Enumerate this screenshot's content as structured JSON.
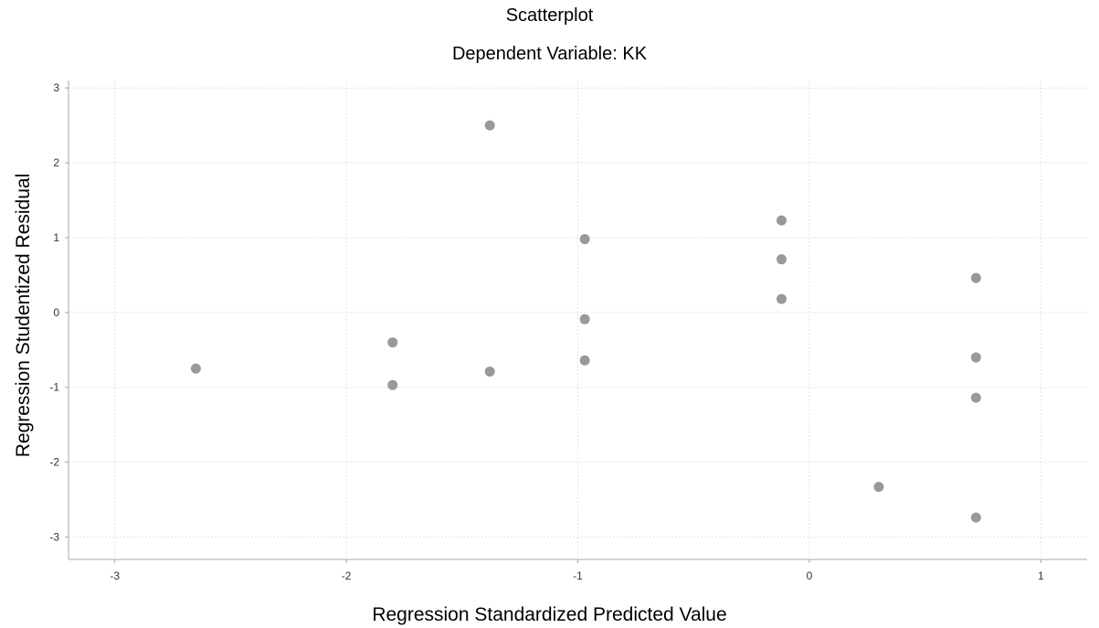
{
  "chart_data": {
    "type": "scatter",
    "title": "Scatterplot",
    "subtitle": "Dependent Variable: KK",
    "xlabel": "Regression Standardized Predicted Value",
    "ylabel": "Regression Studentized Residual",
    "xlim": [
      -3.2,
      1.2
    ],
    "ylim": [
      -3.3,
      3.1
    ],
    "xticks": [
      -3,
      -2,
      -1,
      0,
      1
    ],
    "yticks": [
      -3,
      -2,
      -1,
      0,
      1,
      2,
      3
    ],
    "grid": true,
    "point_color": "#999999",
    "points": [
      {
        "x": -2.65,
        "y": -0.75
      },
      {
        "x": -1.8,
        "y": -0.4
      },
      {
        "x": -1.8,
        "y": -0.97
      },
      {
        "x": -1.38,
        "y": 2.5
      },
      {
        "x": -1.38,
        "y": -0.79
      },
      {
        "x": -0.97,
        "y": 0.98
      },
      {
        "x": -0.97,
        "y": -0.09
      },
      {
        "x": -0.97,
        "y": -0.64
      },
      {
        "x": -0.12,
        "y": 1.23
      },
      {
        "x": -0.12,
        "y": 0.71
      },
      {
        "x": -0.12,
        "y": 0.18
      },
      {
        "x": 0.3,
        "y": -2.33
      },
      {
        "x": 0.72,
        "y": 0.46
      },
      {
        "x": 0.72,
        "y": -0.6
      },
      {
        "x": 0.72,
        "y": -1.14
      },
      {
        "x": 0.72,
        "y": -2.74
      }
    ]
  }
}
